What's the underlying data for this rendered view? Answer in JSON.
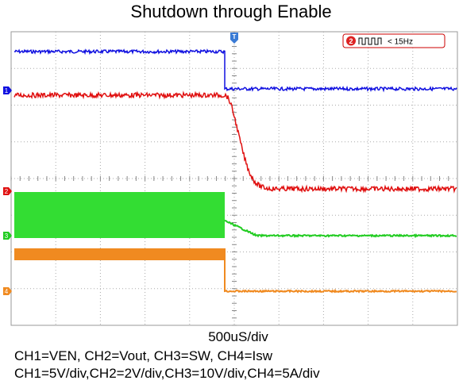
{
  "title": "Shutdown through Enable",
  "trigger": "T",
  "badge": {
    "channel": "2",
    "text": "< 15Hz"
  },
  "channel_markers": [
    "1",
    "2",
    "3",
    "4"
  ],
  "timebase": "500uS/div",
  "channels": "CH1=VEN, CH2=Vout, CH3=SW, CH4=Isw",
  "scales": "CH1=5V/div,CH2=2V/div,CH3=10V/div,CH4=5A/div"
}
